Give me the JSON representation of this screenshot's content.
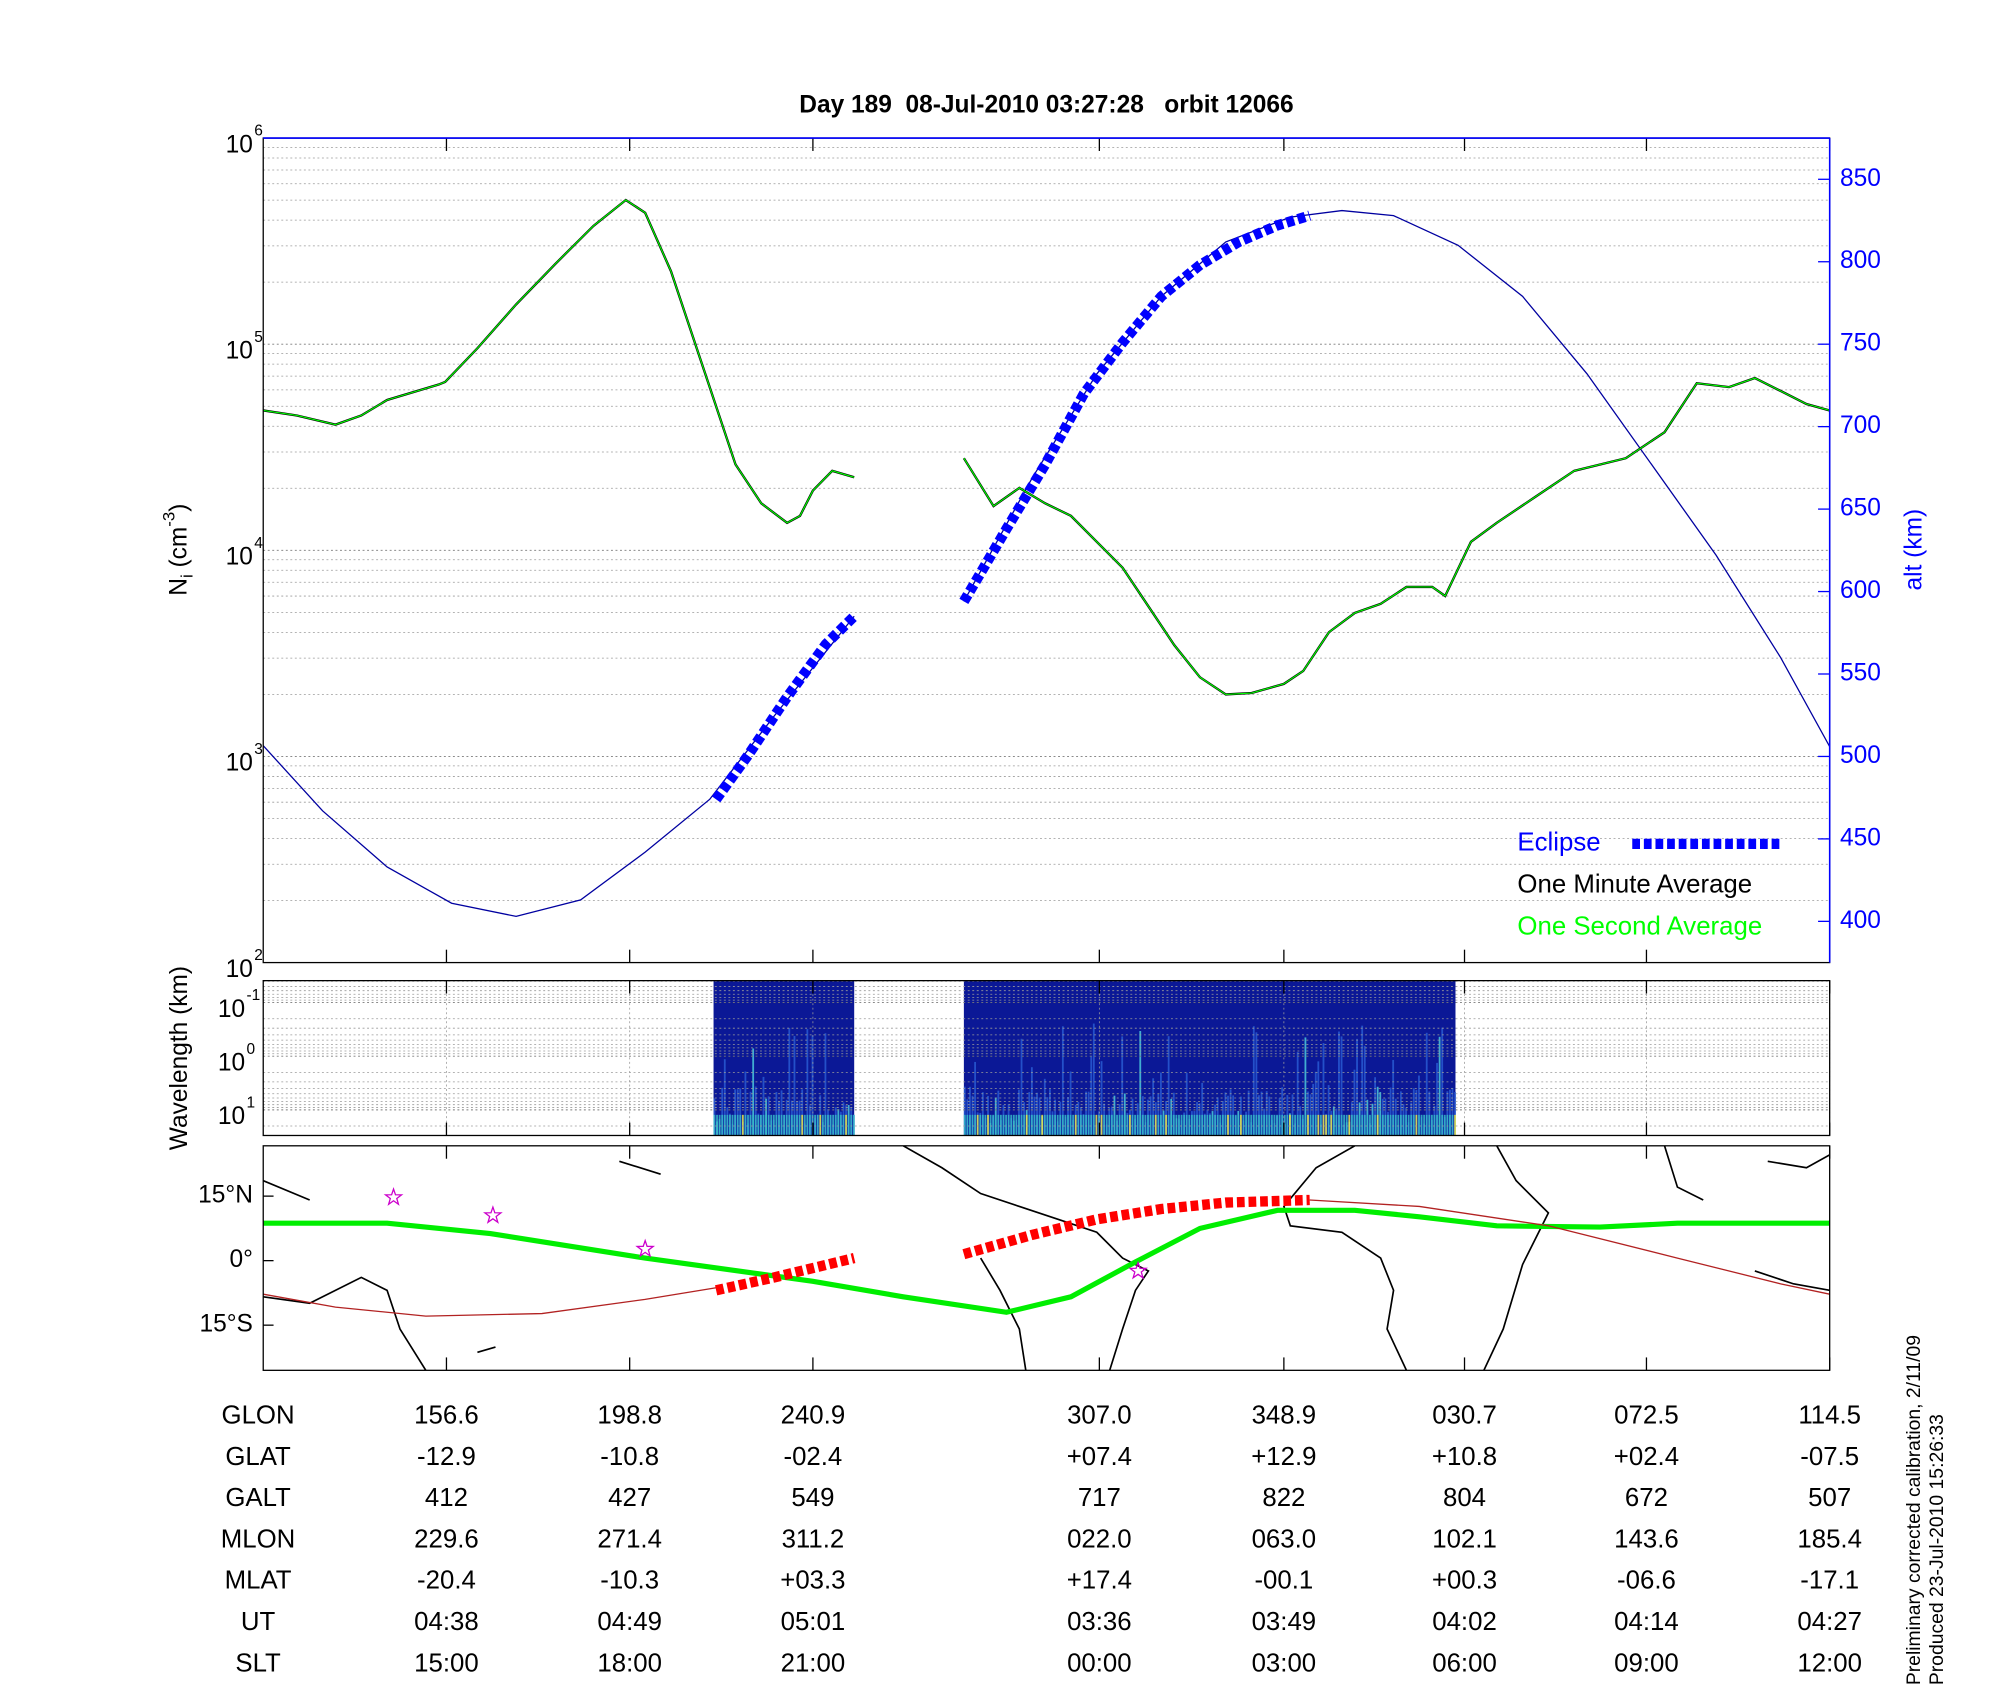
{
  "chart_data": [
    {
      "type": "line",
      "title": "Day 189  08-Jul-2010 03:27:28   orbit 12066",
      "ylabel": {
        "main": "N",
        "sub": "i",
        "unit": " (cm",
        "sup": "-3",
        "close": ")"
      },
      "y2label": "alt (km)",
      "xlim": [
        0,
        1214
      ],
      "xticks": [
        142,
        284,
        426,
        648,
        791,
        931,
        1072,
        1214
      ],
      "log_y": true,
      "ylim": [
        100,
        1000000
      ],
      "yticks": [
        {
          "value": 100,
          "label": "10",
          "exponent": "2"
        },
        {
          "value": 1000,
          "label": "10",
          "exponent": "3"
        },
        {
          "value": 10000,
          "label": "10",
          "exponent": "4"
        },
        {
          "value": 100000,
          "label": "10",
          "exponent": "5"
        },
        {
          "value": 1000000,
          "label": "10",
          "exponent": "6"
        }
      ],
      "y2lim": [
        375,
        875
      ],
      "y2ticks": [
        400,
        450,
        500,
        550,
        600,
        650,
        700,
        750,
        800,
        850
      ],
      "grid": true,
      "legend": "lower right",
      "series": [
        {
          "axis": "y2",
          "color": "#0000a0",
          "x": [
            0,
            46,
            96,
            146,
            196,
            246,
            296,
            346,
            396,
            458,
            500,
            543,
            596,
            646,
            696,
            746,
            796,
            836,
            876,
            926,
            976,
            1026,
            1076,
            1126,
            1176,
            1214
          ],
          "values": [
            506.5,
            467,
            433,
            411,
            403,
            413,
            442,
            474,
            524.5,
            585,
            null,
            594,
            669,
            732,
            779,
            812,
            827,
            831,
            828,
            810,
            779,
            732,
            677,
            622,
            560,
            506
          ]
        },
        {
          "name": "Eclipse",
          "axis": "y2",
          "color": "#0000ff",
          "style": "thick-dashed",
          "x": [
            351,
            376,
            406,
            436,
            458,
            500,
            543,
            576,
            606,
            636,
            666,
            696,
            726,
            756,
            786,
            811
          ],
          "values": [
            474,
            501,
            536,
            568,
            585,
            null,
            594,
            638,
            677,
            720,
            751,
            779,
            798,
            812,
            822,
            828
          ]
        },
        {
          "name": "One Minute Average",
          "color": "#000000",
          "x": [
            0,
            26,
            56,
            76,
            96,
            136,
            141,
            166,
            196,
            226,
            256,
            281,
            296,
            316,
            341,
            366,
            386,
            406,
            416,
            426,
            441,
            458,
            500,
            543,
            566,
            586,
            606,
            626,
            646,
            666,
            686,
            706,
            726,
            746,
            766,
            791,
            806,
            826,
            846,
            866,
            886,
            906,
            916,
            936,
            956,
            986,
            1016,
            1056,
            1086,
            1111,
            1136,
            1156,
            1176,
            1196,
            1214
          ],
          "values": [
            47700,
            45100,
            40700,
            45100,
            53600,
            63700,
            65600,
            95500,
            156000,
            244000,
            375000,
            501000,
            434000,
            226000,
            76900,
            26100,
            16900,
            13600,
            14700,
            19500,
            24300,
            22600,
            null,
            28000,
            16400,
            20100,
            16900,
            14700,
            11000,
            8230,
            5350,
            3470,
            2420,
            2000,
            2030,
            2250,
            2600,
            4010,
            4970,
            5500,
            6640,
            6640,
            6000,
            11000,
            13600,
            18200,
            24300,
            28000,
            37400,
            64700,
            61900,
            68500,
            59300,
            51300,
            47700
          ]
        },
        {
          "name": "One Second Average",
          "color": "#00ff00",
          "x": [
            0,
            26,
            56,
            76,
            96,
            136,
            141,
            166,
            196,
            226,
            256,
            281,
            296,
            316,
            341,
            366,
            386,
            406,
            416,
            426,
            441,
            458,
            500,
            543,
            566,
            586,
            606,
            626,
            646,
            666,
            686,
            706,
            726,
            746,
            766,
            791,
            806,
            826,
            846,
            866,
            886,
            906,
            916,
            936,
            956,
            986,
            1016,
            1056,
            1086,
            1111,
            1136,
            1156,
            1176,
            1196,
            1214
          ],
          "values": [
            47700,
            45100,
            40700,
            45100,
            53600,
            63700,
            65600,
            95500,
            156000,
            244000,
            375000,
            501000,
            434000,
            226000,
            76900,
            26100,
            16900,
            13600,
            14700,
            19500,
            24300,
            22600,
            null,
            28000,
            16400,
            20100,
            16900,
            14700,
            11000,
            8230,
            5350,
            3470,
            2420,
            2000,
            2030,
            2250,
            2600,
            4010,
            4970,
            5500,
            6640,
            6640,
            6000,
            11000,
            13600,
            18200,
            24300,
            28000,
            37400,
            64700,
            61900,
            68500,
            59300,
            51300,
            47700
          ]
        }
      ]
    },
    {
      "type": "spectrogram",
      "ylabel": "Wavelength (km)",
      "log_y": true,
      "ylim": [
        30,
        0.039
      ],
      "yticks": [
        {
          "value": 0.1,
          "label": "10",
          "exponent": "-1"
        },
        {
          "value": 1,
          "label": "10",
          "exponent": "0"
        },
        {
          "value": 10,
          "label": "10",
          "exponent": "1"
        }
      ],
      "grid": true
    },
    {
      "type": "map",
      "ylim": [
        -25.5,
        26.7
      ],
      "yticks": [
        {
          "value": 15,
          "label": "15°N"
        },
        {
          "value": 0,
          "label": "0°"
        },
        {
          "value": -15,
          "label": "15°S"
        }
      ],
      "series": [
        {
          "color": "#00ee00",
          "style": "thick",
          "x": [
            0,
            96,
            176,
            296,
            426,
            496,
            576,
            626,
            676,
            726,
            786,
            846,
            896,
            956,
            1036,
            1096,
            1214
          ],
          "values": [
            8.7,
            8.7,
            6.3,
            0.6,
            -4.8,
            -8.4,
            -12,
            -8.4,
            -0.3,
            7.5,
            11.7,
            11.7,
            10.2,
            8.1,
            7.8,
            8.7,
            8.7
          ]
        },
        {
          "color": "#b22222",
          "x": [
            0,
            56,
            126,
            216,
            296,
            351,
            400,
            811,
            896,
            996,
            1096,
            1176,
            1214
          ],
          "values": [
            -7.8,
            -10.8,
            -12.9,
            -12.3,
            -9,
            -6.3,
            null,
            14.1,
            12.6,
            8.1,
            0.6,
            -5.4,
            -7.8
          ]
        },
        {
          "color": "#ff0000",
          "style": "thick-dashed",
          "x": [
            351,
            396,
            458,
            500,
            543,
            596,
            646,
            696,
            746,
            811
          ],
          "values": [
            -6.9,
            -3.9,
            0.6,
            null,
            1.5,
            6,
            9.6,
            12,
            13.5,
            14.1
          ]
        },
        {
          "color": "#cc00cc",
          "style": "star",
          "x": [
            101,
            178,
            296,
            678
          ],
          "values": [
            14.7,
            10.5,
            2.7,
            -2.4
          ]
        }
      ]
    }
  ],
  "table": {
    "row_labels": [
      "GLON",
      "GLAT",
      "GALT",
      "MLON",
      "MLAT",
      "UT",
      "SLT"
    ],
    "rows": [
      [
        "156.6",
        "198.8",
        "240.9",
        "307.0",
        "348.9",
        "030.7",
        "072.5",
        "114.5"
      ],
      [
        "-12.9",
        "-10.8",
        "-02.4",
        "+07.4",
        "+12.9",
        "+10.8",
        "+02.4",
        "-07.5"
      ],
      [
        "412",
        "427",
        "549",
        "717",
        "822",
        "804",
        "672",
        "507"
      ],
      [
        "229.6",
        "271.4",
        "311.2",
        "022.0",
        "063.0",
        "102.1",
        "143.6",
        "185.4"
      ],
      [
        "-20.4",
        "-10.3",
        "+03.3",
        "+17.4",
        "-00.1",
        "+00.3",
        "-06.6",
        "-17.1"
      ],
      [
        "04:38",
        "04:49",
        "05:01",
        "03:36",
        "03:49",
        "04:02",
        "04:14",
        "04:27"
      ],
      [
        "15:00",
        "18:00",
        "21:00",
        "00:00",
        "03:00",
        "06:00",
        "09:00",
        "12:00"
      ]
    ]
  },
  "notes": [
    "Preliminary corrected calibration, 2/11/09",
    "Produced 23-Jul-2010 15:26:33"
  ]
}
